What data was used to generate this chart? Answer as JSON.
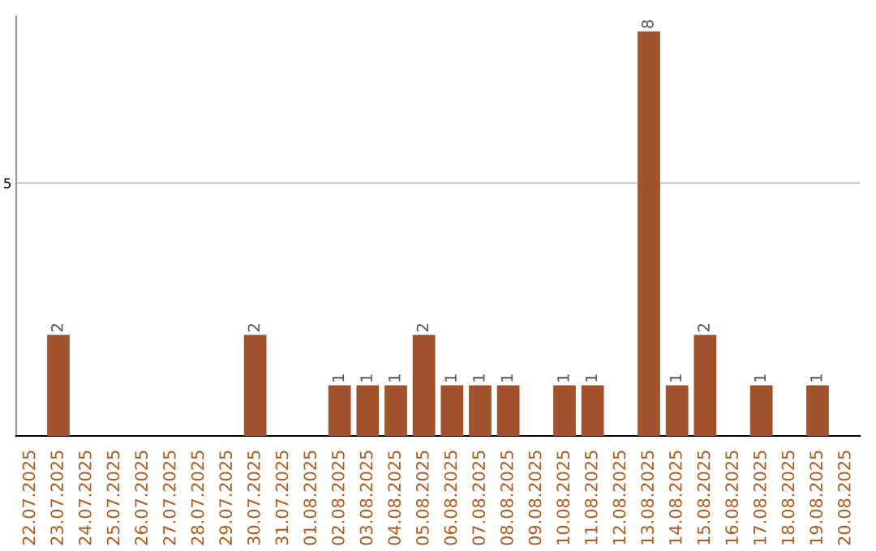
{
  "chart_data": {
    "type": "bar",
    "categories": [
      "22.07.2025",
      "23.07.2025",
      "24.07.2025",
      "25.07.2025",
      "26.07.2025",
      "27.07.2025",
      "28.07.2025",
      "29.07.2025",
      "30.07.2025",
      "31.07.2025",
      "01.08.2025",
      "02.08.2025",
      "03.08.2025",
      "04.08.2025",
      "05.08.2025",
      "06.08.2025",
      "07.08.2025",
      "08.08.2025",
      "09.08.2025",
      "10.08.2025",
      "11.08.2025",
      "12.08.2025",
      "13.08.2025",
      "14.08.2025",
      "15.08.2025",
      "16.08.2025",
      "17.08.2025",
      "18.08.2025",
      "19.08.2025",
      "20.08.2025"
    ],
    "values": [
      0,
      2,
      0,
      0,
      0,
      0,
      0,
      0,
      2,
      0,
      0,
      1,
      1,
      1,
      2,
      1,
      1,
      1,
      0,
      1,
      1,
      0,
      8,
      1,
      2,
      0,
      1,
      0,
      1,
      0
    ],
    "value_labels": [
      null,
      "2",
      null,
      null,
      null,
      null,
      null,
      null,
      "2",
      null,
      null,
      "1",
      "1",
      "1",
      "2",
      "1",
      "1",
      "1",
      null,
      "1",
      "1",
      null,
      "8",
      "1",
      "2",
      null,
      "1",
      null,
      "1",
      null
    ],
    "color": "#a0522d",
    "ylim": [
      0,
      8.3
    ],
    "yticks": [
      5
    ],
    "grid": "y"
  }
}
